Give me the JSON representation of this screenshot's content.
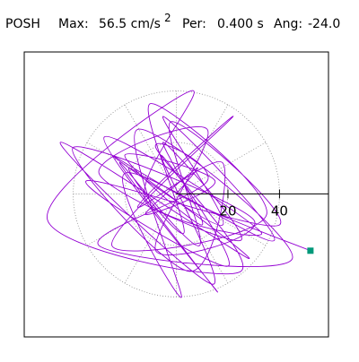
{
  "header": {
    "station": "POSH",
    "max_label": "Max:",
    "max_value": "56.5 cm/s",
    "max_exponent": "2",
    "per_label": "Per:",
    "per_value": "0.400 s",
    "ang_label": "Ang:",
    "ang_value": "-24.0"
  },
  "chart_data": {
    "type": "line",
    "color": "#9400d3",
    "marker_color": "#00997a",
    "xlim": [
      -59,
      59
    ],
    "ylim": [
      -55.4,
      55
    ],
    "xticks": [
      20,
      40
    ],
    "rings": [
      20,
      40
    ],
    "x": [
      0,
      8,
      -12,
      15,
      -20,
      10,
      -5,
      25,
      -30,
      12,
      -8,
      30,
      -40,
      5,
      18,
      -15,
      22,
      -25,
      35,
      -10,
      3,
      -18,
      28,
      -45,
      14,
      -6,
      20,
      -35,
      40,
      -2,
      9,
      -22,
      16,
      -28,
      33,
      -12,
      6,
      -50,
      25,
      -8,
      12,
      -30,
      45,
      -15,
      2,
      -20,
      38,
      -5,
      18,
      -25,
      10,
      52
    ],
    "values": [
      0,
      10,
      -8,
      5,
      15,
      -12,
      20,
      -18,
      8,
      25,
      -22,
      -10,
      18,
      -30,
      12,
      -5,
      30,
      -20,
      -8,
      35,
      -15,
      10,
      -25,
      20,
      -35,
      15,
      -28,
      5,
      -12,
      28,
      -20,
      12,
      -38,
      22,
      -15,
      -2,
      40,
      -10,
      -30,
      18,
      5,
      -20,
      -25,
      25,
      -40,
      8,
      -18,
      30,
      -12,
      15,
      -5,
      -22
    ]
  }
}
